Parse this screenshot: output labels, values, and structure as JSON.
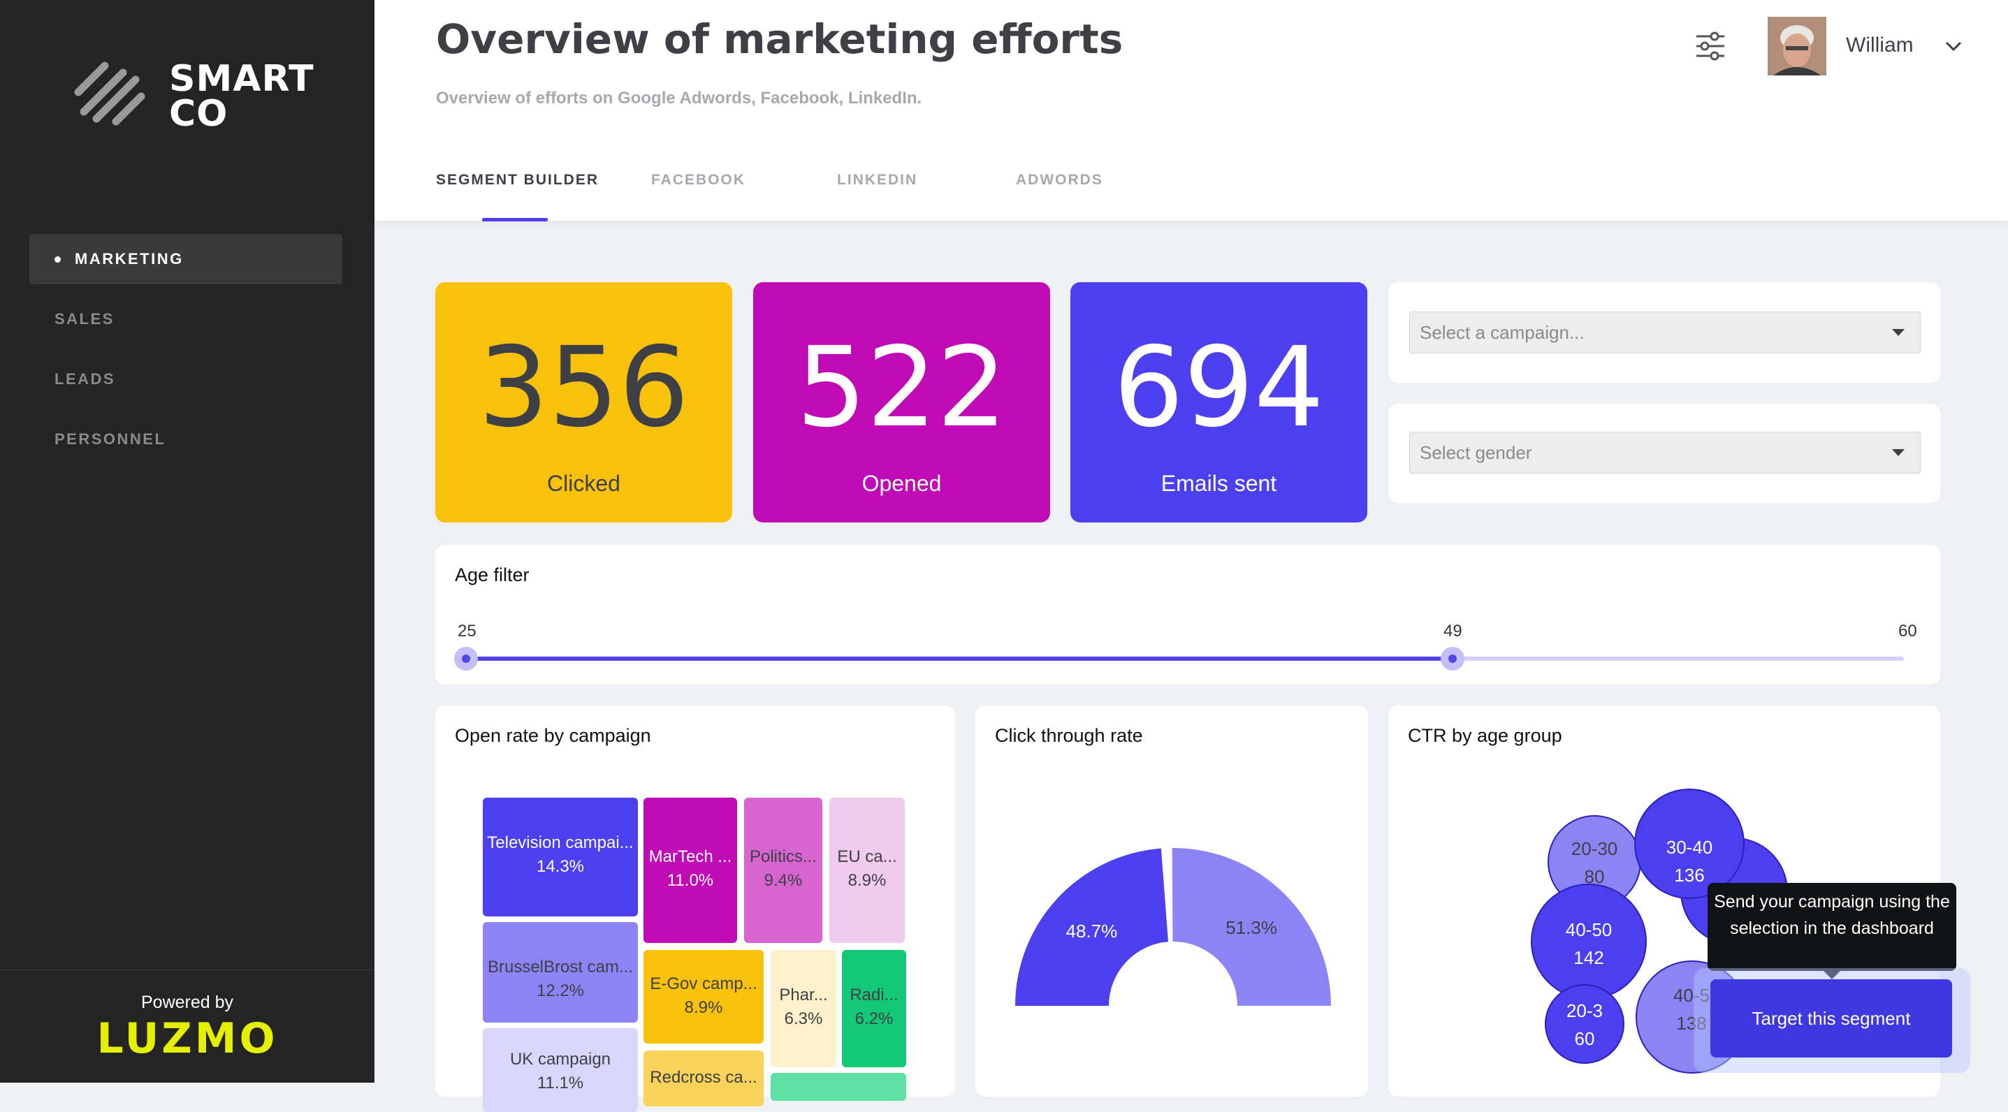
{
  "brand": {
    "name_line1": "SMART",
    "name_line2": "CO",
    "powered_by": "Powered by",
    "vendor": "LUZMO",
    "vendor_color": "#e4f000"
  },
  "sidebar": {
    "items": [
      {
        "label": "MARKETING",
        "active": true
      },
      {
        "label": "SALES",
        "active": false
      },
      {
        "label": "LEADS",
        "active": false
      },
      {
        "label": "PERSONNEL",
        "active": false
      }
    ]
  },
  "header": {
    "title": "Overview of marketing efforts",
    "subtitle": "Overview of efforts on Google Adwords, Facebook, LinkedIn.",
    "tabs": [
      {
        "label": "SEGMENT BUILDER",
        "active": true
      },
      {
        "label": "FACEBOOK",
        "active": false
      },
      {
        "label": "LINKEDIN",
        "active": false
      },
      {
        "label": "ADWORDS",
        "active": false
      }
    ],
    "user_name": "William"
  },
  "kpis": [
    {
      "value": "356",
      "label": "Clicked",
      "color": "#f7c10c"
    },
    {
      "value": "522",
      "label": "Opened",
      "color": "#c00ab6"
    },
    {
      "value": "694",
      "label": "Emails sent",
      "color": "#4b3ff0"
    }
  ],
  "filters": {
    "campaign_placeholder": "Select a campaign...",
    "gender_placeholder": "Select gender"
  },
  "age_filter": {
    "title": "Age filter",
    "min": "25",
    "value": "49",
    "max": "60"
  },
  "charts": {
    "open_rate_title": "Open rate by campaign",
    "ctr_title": "Click through rate",
    "ctr_age_title": "CTR by age group"
  },
  "chart_data": [
    {
      "type": "treemap",
      "title": "Open rate by campaign",
      "items": [
        {
          "label": "Television campai...",
          "value": "14.3%",
          "color": "#4b3ff0"
        },
        {
          "label": "BrusselBrost cam...",
          "value": "12.2%",
          "color": "#8c84f5"
        },
        {
          "label": "UK campaign",
          "value": "11.1%",
          "color": "#d9d5fb"
        },
        {
          "label": "MarTech ...",
          "value": "11.0%",
          "color": "#c00ab6"
        },
        {
          "label": "Politics...",
          "value": "9.4%",
          "color": "#d665d0"
        },
        {
          "label": "EU ca...",
          "value": "8.9%",
          "color": "#f0cbee"
        },
        {
          "label": "E-Gov camp...",
          "value": "8.9%",
          "color": "#f7c10c"
        },
        {
          "label": "Phar...",
          "value": "6.3%",
          "color": "#fff1cc"
        },
        {
          "label": "Radi...",
          "value": "6.2%",
          "color": "#13c978"
        },
        {
          "label": "Redcross ca...",
          "value": "",
          "color": "#f9d25a"
        }
      ]
    },
    {
      "type": "pie",
      "title": "Click through rate",
      "slices": [
        {
          "label": "48.7%",
          "value": 48.7,
          "color": "#4b3ff0"
        },
        {
          "label": "51.3%",
          "value": 51.3,
          "color": "#8c84f5"
        }
      ]
    },
    {
      "type": "bubble",
      "title": "CTR by age group",
      "bubbles": [
        {
          "label": "20-30",
          "value": "80"
        },
        {
          "label": "30-40",
          "value": "136"
        },
        {
          "label": "40-50",
          "value": "142"
        },
        {
          "label": "20-3",
          "value": "60"
        },
        {
          "label": "40-5",
          "value": "138"
        }
      ]
    }
  ],
  "tooltip": "Send your campaign using the selection in the dashboard",
  "cta_label": "Target this segment"
}
